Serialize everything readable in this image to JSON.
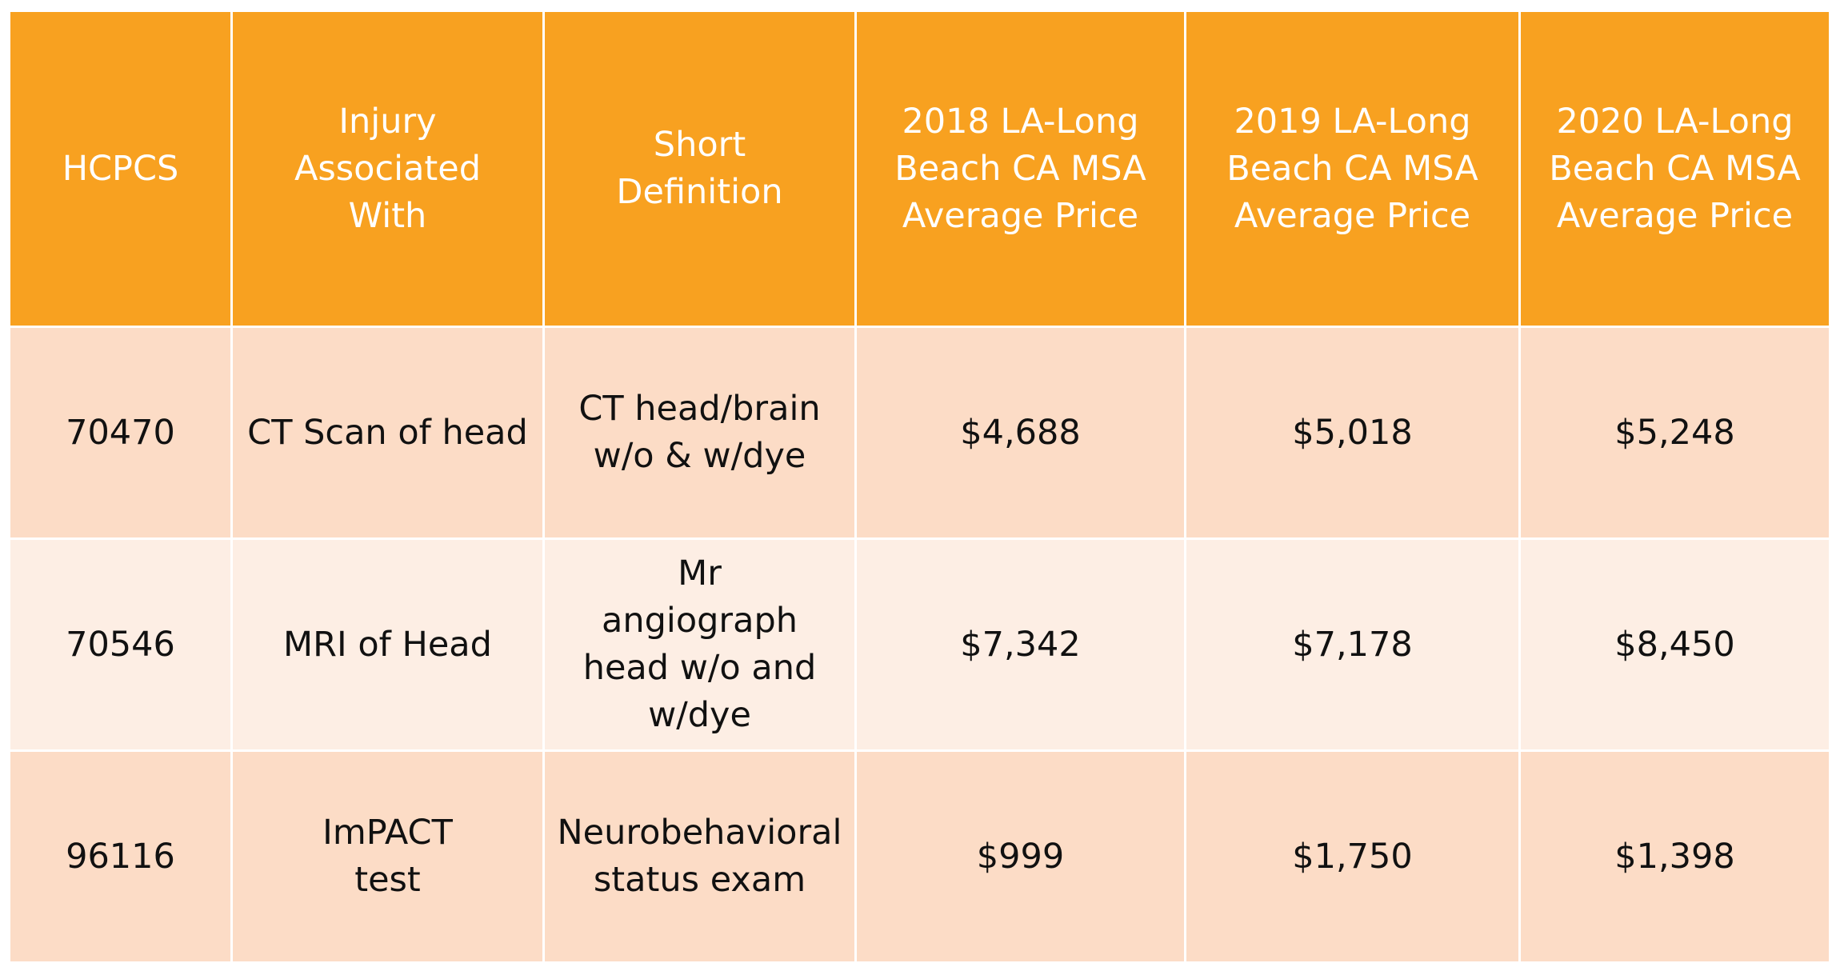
{
  "table": {
    "headers": [
      "HCPCS",
      "Injury Associated With",
      "Short Definition",
      "2018 LA-Long Beach CA MSA Average Price",
      "2019 LA-Long Beach CA MSA Average Price",
      "2020 LA-Long Beach CA MSA Average Price"
    ],
    "rows": [
      [
        "70470",
        "CT Scan of head",
        "CT head/brain w/o & w/dye",
        "$4,688",
        "$5,018",
        "$5,248"
      ],
      [
        "70546",
        "MRI of Head",
        "Mr angiograph head w/o and w/dye",
        "$7,342",
        "$7,178",
        "$8,450"
      ],
      [
        "96116",
        "ImPACT test",
        "Neurobehavioral status exam",
        "$999",
        "$1,750",
        "$1,398"
      ]
    ]
  },
  "colors": {
    "header_background": "#f8a120",
    "header_text": "#ffffff",
    "row_odd_background": "#fcdcc6",
    "row_even_background": "#fdeee4",
    "body_text": "#111111"
  }
}
